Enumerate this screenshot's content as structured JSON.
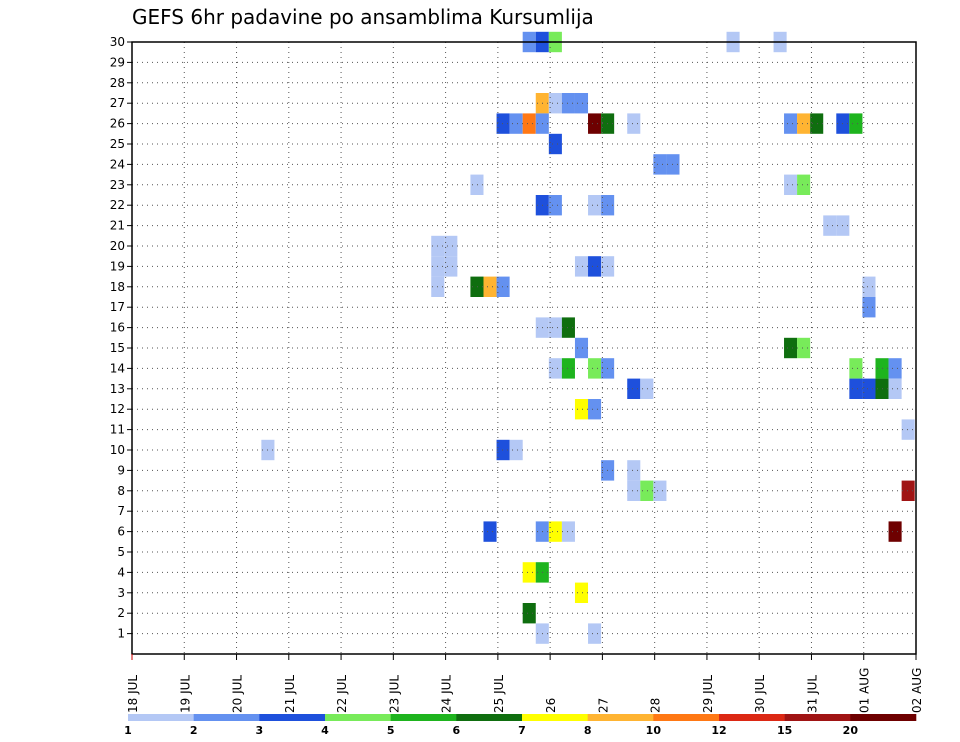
{
  "chart_data": {
    "type": "heatmap",
    "title": "GEFS 6hr padavine po ansamblima Kursumlija",
    "xlabel": "",
    "ylabel": "",
    "x_tick_labels": [
      "18 JUL",
      "19 JUL",
      "20 JUL",
      "21 JUL",
      "22 JUL",
      "23 JUL",
      "24 JUL",
      "25 JUL",
      "26",
      "27",
      "28",
      "29 JUL",
      "30 JUL",
      "31 JUL",
      "01 AUG",
      "02 AUG"
    ],
    "x_range_days": [
      0,
      15
    ],
    "y_range": [
      0,
      30
    ],
    "y_ticks": [
      1,
      2,
      3,
      4,
      5,
      6,
      7,
      8,
      9,
      10,
      11,
      12,
      13,
      14,
      15,
      16,
      17,
      18,
      19,
      20,
      21,
      22,
      23,
      24,
      25,
      26,
      27,
      28,
      29,
      30
    ],
    "grid": true,
    "colorbar": {
      "thresholds": [
        "1",
        "2",
        "3",
        "4",
        "5",
        "6",
        "7",
        "8",
        "10",
        "12",
        "15",
        "20"
      ],
      "colors": [
        "#b4c8f5",
        "#6491f0",
        "#1e50dc",
        "#78eb5a",
        "#1eb41e",
        "#0f6e0f",
        "#ffff00",
        "#ffb432",
        "#ff7814",
        "#dc2814",
        "#a01414",
        "#6e0000"
      ]
    },
    "cells": [
      {
        "member": 30,
        "day": 7.6,
        "level": 2
      },
      {
        "member": 30,
        "day": 7.85,
        "level": 3
      },
      {
        "member": 30,
        "day": 8.1,
        "level": 4
      },
      {
        "member": 30,
        "day": 11.5,
        "level": 1
      },
      {
        "member": 30,
        "day": 12.4,
        "level": 1
      },
      {
        "member": 27,
        "day": 7.85,
        "level": 8
      },
      {
        "member": 27,
        "day": 8.1,
        "level": 1
      },
      {
        "member": 27,
        "day": 8.35,
        "level": 2
      },
      {
        "member": 27,
        "day": 8.6,
        "level": 2
      },
      {
        "member": 26,
        "day": 7.1,
        "level": 3
      },
      {
        "member": 26,
        "day": 7.35,
        "level": 2
      },
      {
        "member": 26,
        "day": 7.6,
        "level": 9
      },
      {
        "member": 26,
        "day": 7.85,
        "level": 2
      },
      {
        "member": 26,
        "day": 8.85,
        "level": 12
      },
      {
        "member": 26,
        "day": 9.1,
        "level": 6
      },
      {
        "member": 26,
        "day": 9.6,
        "level": 1
      },
      {
        "member": 26,
        "day": 12.6,
        "level": 2
      },
      {
        "member": 26,
        "day": 12.85,
        "level": 8
      },
      {
        "member": 26,
        "day": 13.1,
        "level": 6
      },
      {
        "member": 26,
        "day": 13.6,
        "level": 3
      },
      {
        "member": 26,
        "day": 13.85,
        "level": 5
      },
      {
        "member": 25,
        "day": 8.1,
        "level": 3
      },
      {
        "member": 24,
        "day": 10.1,
        "level": 2
      },
      {
        "member": 24,
        "day": 10.35,
        "level": 2
      },
      {
        "member": 23,
        "day": 6.6,
        "level": 1
      },
      {
        "member": 23,
        "day": 12.6,
        "level": 1
      },
      {
        "member": 23,
        "day": 12.85,
        "level": 4
      },
      {
        "member": 22,
        "day": 7.85,
        "level": 3
      },
      {
        "member": 22,
        "day": 8.1,
        "level": 2
      },
      {
        "member": 22,
        "day": 8.85,
        "level": 1
      },
      {
        "member": 22,
        "day": 9.1,
        "level": 2
      },
      {
        "member": 21,
        "day": 13.35,
        "level": 1
      },
      {
        "member": 21,
        "day": 13.6,
        "level": 1
      },
      {
        "member": 20,
        "day": 5.85,
        "level": 1
      },
      {
        "member": 20,
        "day": 6.1,
        "level": 1
      },
      {
        "member": 19,
        "day": 5.85,
        "level": 1
      },
      {
        "member": 19,
        "day": 6.1,
        "level": 1
      },
      {
        "member": 19,
        "day": 8.6,
        "level": 1
      },
      {
        "member": 19,
        "day": 8.85,
        "level": 3
      },
      {
        "member": 19,
        "day": 9.1,
        "level": 1
      },
      {
        "member": 18,
        "day": 5.85,
        "level": 1
      },
      {
        "member": 18,
        "day": 6.6,
        "level": 6
      },
      {
        "member": 18,
        "day": 6.85,
        "level": 8
      },
      {
        "member": 18,
        "day": 7.1,
        "level": 2
      },
      {
        "member": 18,
        "day": 14.1,
        "level": 1
      },
      {
        "member": 17,
        "day": 14.1,
        "level": 2
      },
      {
        "member": 16,
        "day": 7.85,
        "level": 1
      },
      {
        "member": 16,
        "day": 8.1,
        "level": 1
      },
      {
        "member": 16,
        "day": 8.35,
        "level": 6
      },
      {
        "member": 15,
        "day": 8.6,
        "level": 2
      },
      {
        "member": 15,
        "day": 12.6,
        "level": 6
      },
      {
        "member": 15,
        "day": 12.85,
        "level": 4
      },
      {
        "member": 14,
        "day": 8.1,
        "level": 1
      },
      {
        "member": 14,
        "day": 8.35,
        "level": 5
      },
      {
        "member": 14,
        "day": 8.85,
        "level": 4
      },
      {
        "member": 14,
        "day": 9.1,
        "level": 2
      },
      {
        "member": 14,
        "day": 13.85,
        "level": 4
      },
      {
        "member": 14,
        "day": 14.35,
        "level": 5
      },
      {
        "member": 14,
        "day": 14.6,
        "level": 2
      },
      {
        "member": 13,
        "day": 9.6,
        "level": 3
      },
      {
        "member": 13,
        "day": 9.85,
        "level": 1
      },
      {
        "member": 13,
        "day": 13.85,
        "level": 3
      },
      {
        "member": 13,
        "day": 14.1,
        "level": 3
      },
      {
        "member": 13,
        "day": 14.35,
        "level": 6
      },
      {
        "member": 13,
        "day": 14.6,
        "level": 1
      },
      {
        "member": 12,
        "day": 8.6,
        "level": 7
      },
      {
        "member": 12,
        "day": 8.85,
        "level": 2
      },
      {
        "member": 11,
        "day": 14.85,
        "level": 1
      },
      {
        "member": 10,
        "day": 2.6,
        "level": 1
      },
      {
        "member": 10,
        "day": 7.1,
        "level": 3
      },
      {
        "member": 10,
        "day": 7.35,
        "level": 1
      },
      {
        "member": 9,
        "day": 9.1,
        "level": 2
      },
      {
        "member": 9,
        "day": 9.6,
        "level": 1
      },
      {
        "member": 8,
        "day": 9.6,
        "level": 1
      },
      {
        "member": 8,
        "day": 9.85,
        "level": 4
      },
      {
        "member": 8,
        "day": 10.1,
        "level": 1
      },
      {
        "member": 8,
        "day": 14.85,
        "level": 11
      },
      {
        "member": 6,
        "day": 6.85,
        "level": 3
      },
      {
        "member": 6,
        "day": 7.85,
        "level": 2
      },
      {
        "member": 6,
        "day": 8.1,
        "level": 7
      },
      {
        "member": 6,
        "day": 8.35,
        "level": 1
      },
      {
        "member": 6,
        "day": 14.6,
        "level": 12
      },
      {
        "member": 4,
        "day": 7.6,
        "level": 7
      },
      {
        "member": 4,
        "day": 7.85,
        "level": 5
      },
      {
        "member": 3,
        "day": 8.6,
        "level": 7
      },
      {
        "member": 2,
        "day": 7.6,
        "level": 6
      },
      {
        "member": 1,
        "day": 7.85,
        "level": 1
      },
      {
        "member": 1,
        "day": 8.85,
        "level": 1
      }
    ]
  }
}
